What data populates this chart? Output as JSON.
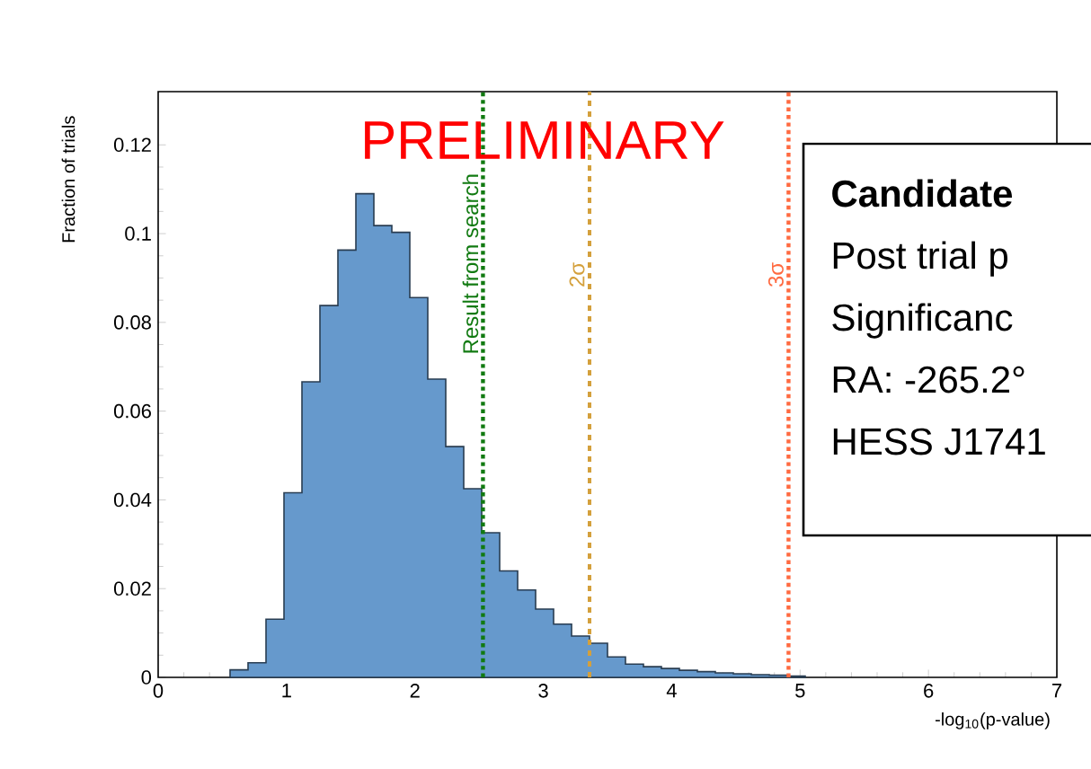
{
  "chart_data": {
    "type": "histogram",
    "bins": [
      0.56,
      0.7,
      0.84,
      0.98,
      1.12,
      1.26,
      1.4,
      1.54,
      1.68,
      1.82,
      1.96,
      2.1,
      2.24,
      2.38,
      2.52,
      2.66,
      2.8,
      2.94,
      3.08,
      3.22,
      3.36,
      3.5,
      3.64,
      3.78,
      3.92,
      4.06,
      4.2,
      4.34,
      4.48,
      4.62,
      4.76,
      4.9,
      5.04
    ],
    "values": [
      0.0017,
      0.0033,
      0.0131,
      0.0416,
      0.0666,
      0.0838,
      0.0963,
      0.109,
      0.1018,
      0.1003,
      0.0856,
      0.0672,
      0.052,
      0.0425,
      0.0326,
      0.024,
      0.0197,
      0.0154,
      0.012,
      0.0093,
      0.0077,
      0.0046,
      0.003,
      0.0024,
      0.002,
      0.0016,
      0.0013,
      0.001,
      0.0008,
      0.0006,
      0.0005,
      0.0003
    ],
    "color": "#6699cc",
    "xlabel": "-log$_{10}$(p-value)",
    "ylabel": "Fraction of trials",
    "xlim": [
      0,
      7
    ],
    "ylim": [
      0,
      0.132
    ],
    "xticks": [
      0,
      1,
      2,
      3,
      4,
      5,
      6,
      7
    ],
    "yticks": [
      0,
      0.02,
      0.04,
      0.06,
      0.08,
      0.1,
      0.12
    ],
    "ref_lines": [
      {
        "axis": "x",
        "value": 2.53,
        "label": "Result from search",
        "color": "#117a11",
        "line_style": "dotted"
      },
      {
        "axis": "x",
        "value": 3.36,
        "label": "2σ",
        "color": "#d4a03c",
        "line_style": "dashed"
      },
      {
        "axis": "x",
        "value": 4.91,
        "label": "3σ",
        "color": "#ff6a40",
        "line_style": "dotted"
      }
    ],
    "annotations": [
      "PRELIMINARY",
      "**Candidate**",
      "Post trial p",
      "Significanc",
      "RA: -265.2°",
      "HESS J1741"
    ]
  }
}
